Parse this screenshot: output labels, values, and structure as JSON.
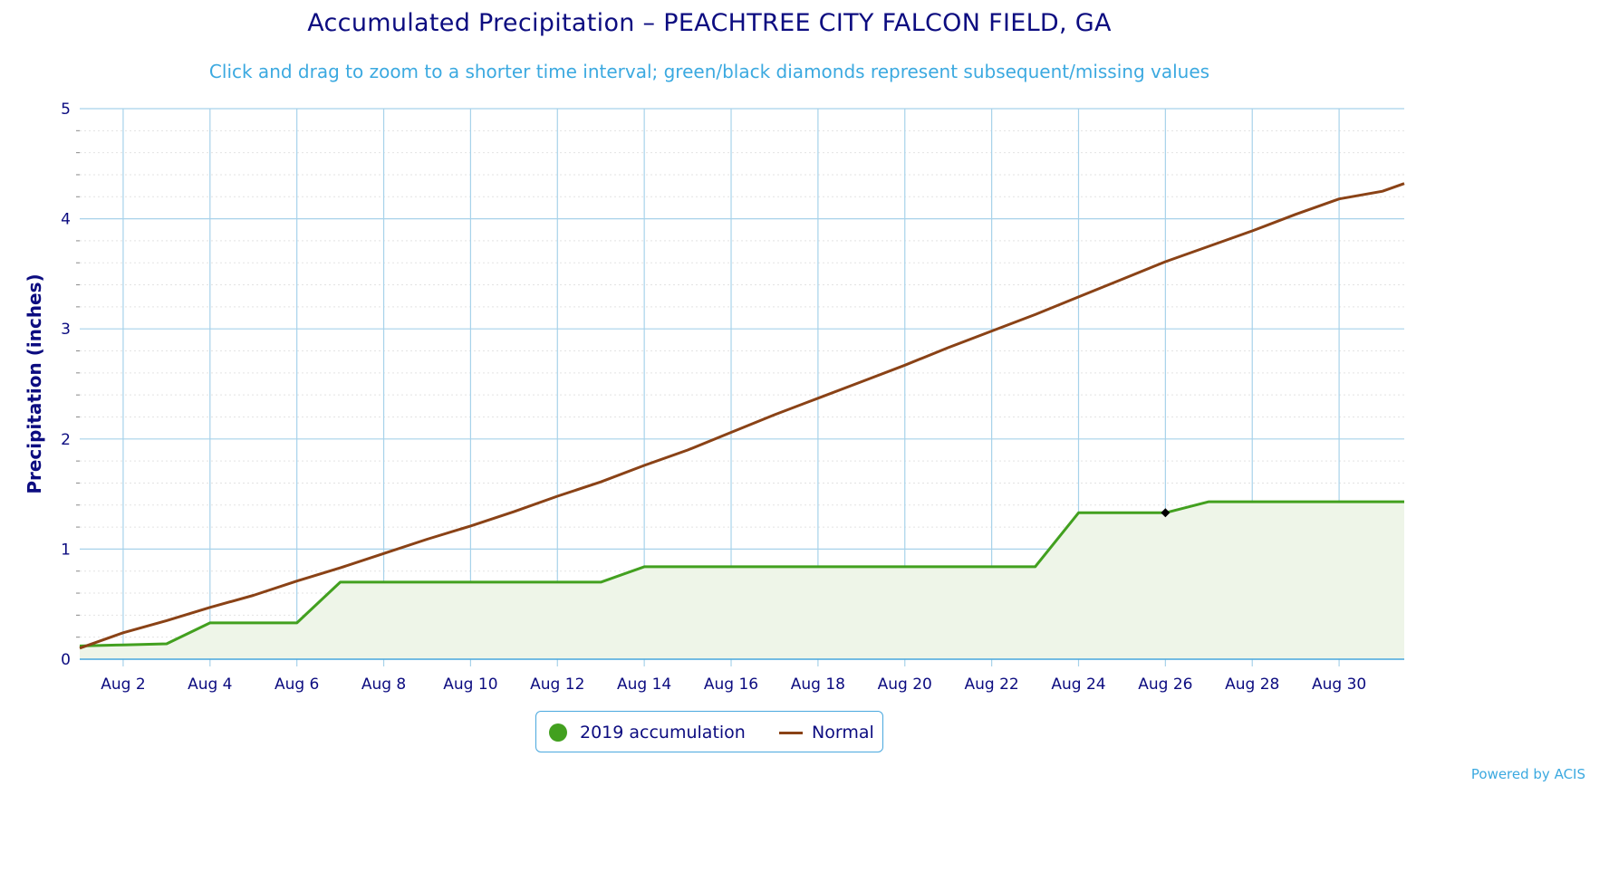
{
  "header": {
    "title": "Accumulated Precipitation – PEACHTREE CITY FALCON FIELD, GA",
    "subtitle": "Click and drag to zoom to a shorter time interval; green/black diamonds represent subsequent/missing values"
  },
  "legend": {
    "items": [
      {
        "label": "2019 accumulation",
        "color": "#42a01f",
        "symbol": "dot"
      },
      {
        "label": "Normal",
        "color": "#8a4216",
        "symbol": "line"
      }
    ]
  },
  "credit": "Powered by ACIS",
  "chart_data": {
    "type": "area",
    "title": "Accumulated Precipitation – PEACHTREE CITY FALCON FIELD, GA",
    "ylabel": "Precipitation (inches)",
    "xlabel": "",
    "ylim": [
      0,
      5
    ],
    "yticks": [
      0,
      1,
      2,
      3,
      4,
      5
    ],
    "xlim": [
      1,
      31.5
    ],
    "xticks": [
      2,
      4,
      6,
      8,
      10,
      12,
      14,
      16,
      18,
      20,
      22,
      24,
      26,
      28,
      30
    ],
    "xtick_labels": [
      "Aug 2",
      "Aug 4",
      "Aug 6",
      "Aug 8",
      "Aug 10",
      "Aug 12",
      "Aug 14",
      "Aug 16",
      "Aug 18",
      "Aug 20",
      "Aug 22",
      "Aug 24",
      "Aug 26",
      "Aug 28",
      "Aug 30"
    ],
    "grid": true,
    "legend_position": "bottom-center",
    "series": [
      {
        "name": "2019 accumulation",
        "color": "#42a01f",
        "fill": "#eef5e8",
        "x": [
          1,
          2,
          3,
          4,
          5,
          6,
          7,
          8,
          9,
          10,
          11,
          12,
          13,
          14,
          15,
          16,
          17,
          18,
          19,
          20,
          21,
          22,
          23,
          24,
          25,
          26,
          27,
          28,
          29,
          30,
          31,
          31.5
        ],
        "values": [
          0.12,
          0.13,
          0.14,
          0.33,
          0.33,
          0.33,
          0.7,
          0.7,
          0.7,
          0.7,
          0.7,
          0.7,
          0.7,
          0.84,
          0.84,
          0.84,
          0.84,
          0.84,
          0.84,
          0.84,
          0.84,
          0.84,
          0.84,
          1.33,
          1.33,
          1.33,
          1.43,
          1.43,
          1.43,
          1.43,
          1.43,
          1.43
        ]
      },
      {
        "name": "Normal",
        "color": "#8a4216",
        "x": [
          1,
          2,
          3,
          4,
          5,
          6,
          7,
          8,
          9,
          10,
          11,
          12,
          13,
          14,
          15,
          16,
          17,
          18,
          19,
          20,
          21,
          22,
          23,
          24,
          25,
          26,
          27,
          28,
          29,
          30,
          31,
          31.5
        ],
        "values": [
          0.1,
          0.24,
          0.35,
          0.47,
          0.58,
          0.71,
          0.83,
          0.96,
          1.09,
          1.21,
          1.34,
          1.48,
          1.61,
          1.76,
          1.9,
          2.06,
          2.22,
          2.37,
          2.52,
          2.67,
          2.83,
          2.98,
          3.13,
          3.29,
          3.45,
          3.61,
          3.75,
          3.89,
          4.04,
          4.18,
          4.25,
          4.32
        ]
      }
    ],
    "markers": [
      {
        "x": 26,
        "y": 1.33,
        "shape": "diamond",
        "color": "#000000"
      }
    ]
  }
}
